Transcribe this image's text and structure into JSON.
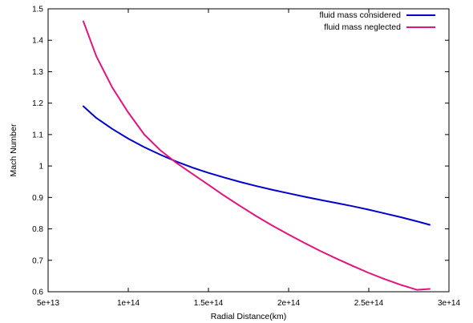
{
  "chart_data": {
    "type": "line",
    "title": "",
    "xlabel": "Radial Distance(km)",
    "ylabel": "Mach Number",
    "xlim": [
      50000000000000.0,
      300000000000000.0
    ],
    "ylim": [
      0.6,
      1.5
    ],
    "xticks": [
      50000000000000.0,
      100000000000000.0,
      150000000000000.0,
      200000000000000.0,
      250000000000000.0,
      300000000000000.0
    ],
    "xtick_labels": [
      "5e+13",
      "1e+14",
      "1.5e+14",
      "2e+14",
      "2.5e+14",
      "3e+14"
    ],
    "yticks": [
      0.6,
      0.7,
      0.8,
      0.9,
      1.0,
      1.1,
      1.2,
      1.3,
      1.4,
      1.5
    ],
    "ytick_labels": [
      "0.6",
      "0.7",
      "0.8",
      "0.9",
      "1",
      "1.1",
      "1.2",
      "1.3",
      "1.4",
      "1.5"
    ],
    "grid": false,
    "legend_position": "top-right",
    "series": [
      {
        "name": "fluid mass considered",
        "color": "#0000cc",
        "x": [
          72000000000000.0,
          80000000000000.0,
          90000000000000.0,
          100000000000000.0,
          110000000000000.0,
          120000000000000.0,
          130000000000000.0,
          140000000000000.0,
          150000000000000.0,
          160000000000000.0,
          170000000000000.0,
          180000000000000.0,
          190000000000000.0,
          200000000000000.0,
          210000000000000.0,
          220000000000000.0,
          230000000000000.0,
          240000000000000.0,
          250000000000000.0,
          260000000000000.0,
          270000000000000.0,
          280000000000000.0,
          288000000000000.0
        ],
        "y": [
          1.19,
          1.153,
          1.118,
          1.087,
          1.06,
          1.036,
          1.014,
          0.995,
          0.978,
          0.963,
          0.949,
          0.936,
          0.924,
          0.913,
          0.902,
          0.892,
          0.882,
          0.872,
          0.861,
          0.849,
          0.837,
          0.824,
          0.813
        ]
      },
      {
        "name": "fluid mass neglected",
        "color": "#e0157d",
        "x": [
          72000000000000.0,
          80000000000000.0,
          90000000000000.0,
          100000000000000.0,
          110000000000000.0,
          120000000000000.0,
          130000000000000.0,
          140000000000000.0,
          150000000000000.0,
          160000000000000.0,
          170000000000000.0,
          180000000000000.0,
          190000000000000.0,
          200000000000000.0,
          210000000000000.0,
          220000000000000.0,
          230000000000000.0,
          240000000000000.0,
          250000000000000.0,
          260000000000000.0,
          270000000000000.0,
          280000000000000.0,
          288000000000000.0
        ],
        "y": [
          1.46,
          1.35,
          1.25,
          1.17,
          1.1,
          1.05,
          1.01,
          0.975,
          0.94,
          0.905,
          0.872,
          0.84,
          0.81,
          0.782,
          0.755,
          0.729,
          0.705,
          0.682,
          0.66,
          0.64,
          0.622,
          0.606,
          0.609
        ]
      }
    ]
  }
}
